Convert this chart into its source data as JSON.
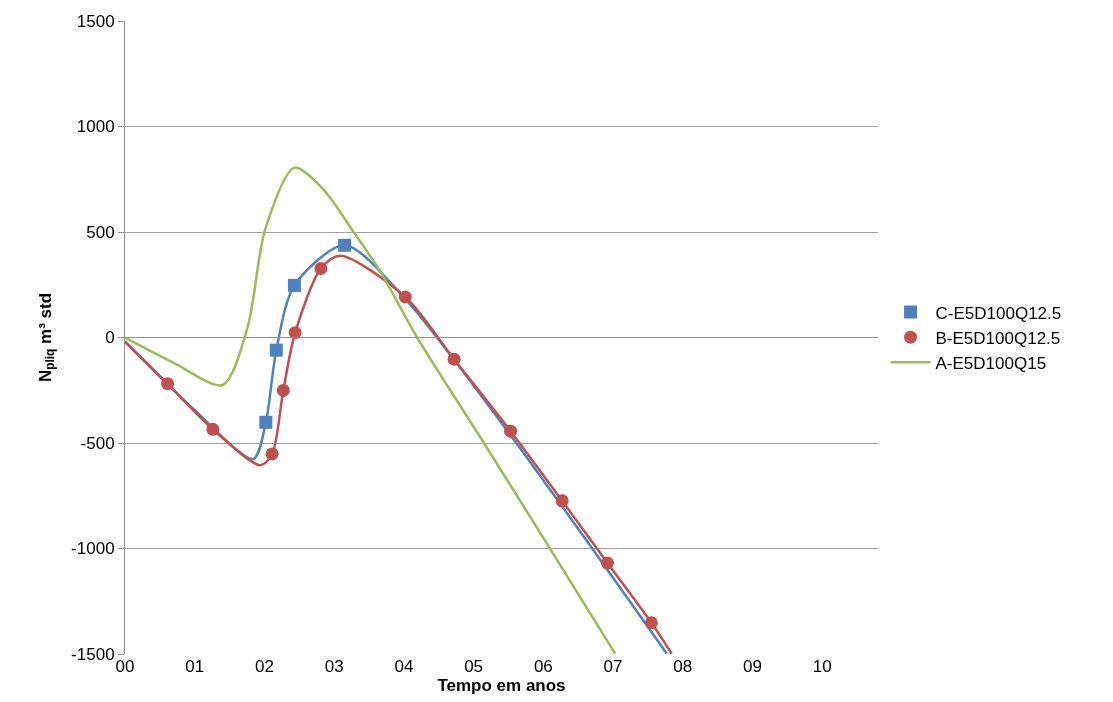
{
  "chart_data": {
    "type": "line",
    "xlabel": "Tempo em anos",
    "ylabel": "N$_{pliq}$ m³ std",
    "xlim": [
      0,
      10.8
    ],
    "ylim": [
      -1500,
      1500
    ],
    "xticks": [
      {
        "value": 0,
        "label": "00"
      },
      {
        "value": 1,
        "label": "01"
      },
      {
        "value": 2,
        "label": "02"
      },
      {
        "value": 3,
        "label": "03"
      },
      {
        "value": 4,
        "label": "04"
      },
      {
        "value": 5,
        "label": "05"
      },
      {
        "value": 6,
        "label": "06"
      },
      {
        "value": 7,
        "label": "07"
      },
      {
        "value": 8,
        "label": "08"
      },
      {
        "value": 9,
        "label": "09"
      },
      {
        "value": 10,
        "label": "10"
      }
    ],
    "yticks": [
      -1500,
      -1000,
      -500,
      0,
      500,
      1000,
      1500
    ],
    "grid": "y",
    "legend": "right",
    "series": [
      {
        "color": "#4f81bd",
        "marker": "none",
        "x": [
          0,
          1.0,
          1.84,
          2.02,
          2.17,
          2.43,
          3.15,
          4.0,
          5.5,
          7.77
        ],
        "values": [
          -20,
          -345,
          -575,
          -402,
          -60,
          247,
          437,
          190,
          -450,
          -1498
        ]
      },
      {
        "name": "C-E5D100Q12.5",
        "type": "scatter",
        "color": "#4f81bd",
        "marker": "square",
        "x": [
          2.02,
          2.17,
          2.43,
          3.15
        ],
        "values": [
          -402,
          -60,
          247,
          437
        ]
      },
      {
        "color": "#c0504d",
        "marker": "none",
        "x": [
          0,
          0.61,
          1.26,
          1.94,
          2.11,
          2.27,
          2.44,
          2.81,
          3.09,
          4.02,
          4.72,
          5.53,
          6.27,
          6.92,
          7.55,
          7.84
        ],
        "values": [
          -20,
          -219,
          -435,
          -605,
          -552,
          -251,
          23,
          327,
          388,
          192,
          -103,
          -444,
          -774,
          -1069,
          -1352,
          -1498
        ]
      },
      {
        "name": "B-E5D100Q12.5",
        "type": "scatter",
        "color": "#c0504d",
        "marker": "circle",
        "x": [
          0.61,
          1.26,
          2.11,
          2.27,
          2.44,
          2.81,
          4.02,
          4.72,
          5.53,
          6.27,
          6.92,
          7.55
        ],
        "values": [
          -219,
          -435,
          -552,
          -251,
          23,
          327,
          192,
          -103,
          -444,
          -774,
          -1069,
          -1352
        ]
      },
      {
        "name": "A-E5D100Q15",
        "color": "#9bbb59",
        "marker": "none",
        "x": [
          0,
          0.7,
          1.4,
          1.76,
          2.01,
          2.43,
          2.85,
          3.28,
          3.65,
          4.19,
          5.15,
          6.1,
          7.03
        ],
        "values": [
          0,
          -120,
          -225,
          51,
          511,
          805,
          700,
          499,
          319,
          0,
          -501,
          -1003,
          -1498
        ]
      }
    ]
  }
}
